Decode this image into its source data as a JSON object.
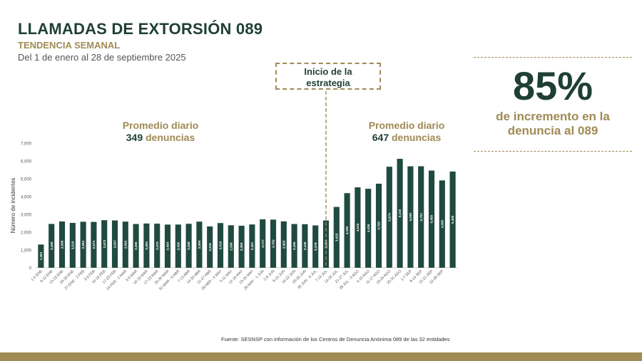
{
  "header": {
    "title": "LLAMADAS DE EXTORSIÓN 089",
    "subtitle": "TENDENCIA SEMANAL",
    "date_range": "Del 1 de enero al 28 de septiembre 2025"
  },
  "marker": {
    "line1": "Inicio de la",
    "line2": "estrategia"
  },
  "averages": {
    "before": {
      "label": "Promedio diario",
      "number": "349",
      "unit": "denuncias"
    },
    "after": {
      "label": "Promedio diario",
      "number": "647",
      "unit": "denuncias"
    }
  },
  "kpi": {
    "value": "85%",
    "line1": "de incremento en la",
    "line2": "denuncia al 089"
  },
  "source": "Fuente: SESNSP con información de los Centros de Denuncia Anónima 089 de las 32 entidades",
  "colors": {
    "bar": "#1f4a3f",
    "accent": "#a08a55",
    "dark": "#1f3f35"
  },
  "chart_data": {
    "type": "bar",
    "ylabel": "Número de incidentes",
    "ylim": [
      0,
      7000
    ],
    "yticks": [
      "0",
      "1,000",
      "2,000",
      "3,000",
      "4,000",
      "5,000",
      "6,000",
      "7,000"
    ],
    "grid": false,
    "categories": [
      "1-5 ENE",
      "6-12 ENE",
      "13-19 ENE",
      "20-26 ENE",
      "27 ENE - 2 FEB",
      "3-9 FEB",
      "10-16 FEB",
      "17-23 FEB",
      "24 FEB - 2 MAR",
      "3-9 MAR",
      "10-16 MAR",
      "17-23 MAR",
      "24-30 MAR",
      "31 MAR - 6 ABR",
      "7-13 ABR",
      "14-20 ABR",
      "21-27 ABR",
      "28 ABR - 4 MAY",
      "5-11 MAY",
      "12-18 MAY",
      "19-25 MAY",
      "26 MAY - 1 JUN",
      "2-8 JUN",
      "9-15 JUN",
      "16-22 JUN",
      "23-29 JUN",
      "30 JUN - 6 JUL",
      "7-13 JUL",
      "14-20 JUL",
      "21-27 JUL",
      "28 JUL - 3 AGO",
      "4-10 AGO",
      "11-17 AGO",
      "18-24 AGO",
      "25-31 AGO",
      "1-7 SEP",
      "8-14 SEP",
      "15-21 SEP",
      "22-28 SEP"
    ],
    "values": [
      1303,
      2460,
      2598,
      2518,
      2583,
      2574,
      2672,
      2657,
      2592,
      2456,
      2484,
      2475,
      2424,
      2426,
      2468,
      2590,
      2318,
      2510,
      2386,
      2359,
      2431,
      2717,
      2702,
      2602,
      2455,
      2445,
      2378,
      2654,
      3415,
      4190,
      4516,
      4436,
      4720,
      5674,
      6118,
      5698,
      5701,
      5458,
      4905
    ],
    "data_labels": [
      "1,303",
      "2,460",
      "2,598",
      "2,518",
      "2,583",
      "2,574",
      "2,672",
      "2,657",
      "2,592",
      "2,456",
      "2,484",
      "2,475",
      "2,424",
      "2,426",
      "2,468",
      "2,590",
      "2,318",
      "2,510",
      "2,386",
      "2,359",
      "2,431",
      "2,717",
      "2,702",
      "2,602",
      "2,455",
      "2,445",
      "2,378",
      "2,654",
      "3,415",
      "4,190",
      "4,516",
      "4,436",
      "4,720",
      "5,674",
      "6,118",
      "5,698",
      "5,701",
      "5,458",
      "4,905"
    ],
    "extra_value": 5405,
    "extra_label": "5,405"
  }
}
